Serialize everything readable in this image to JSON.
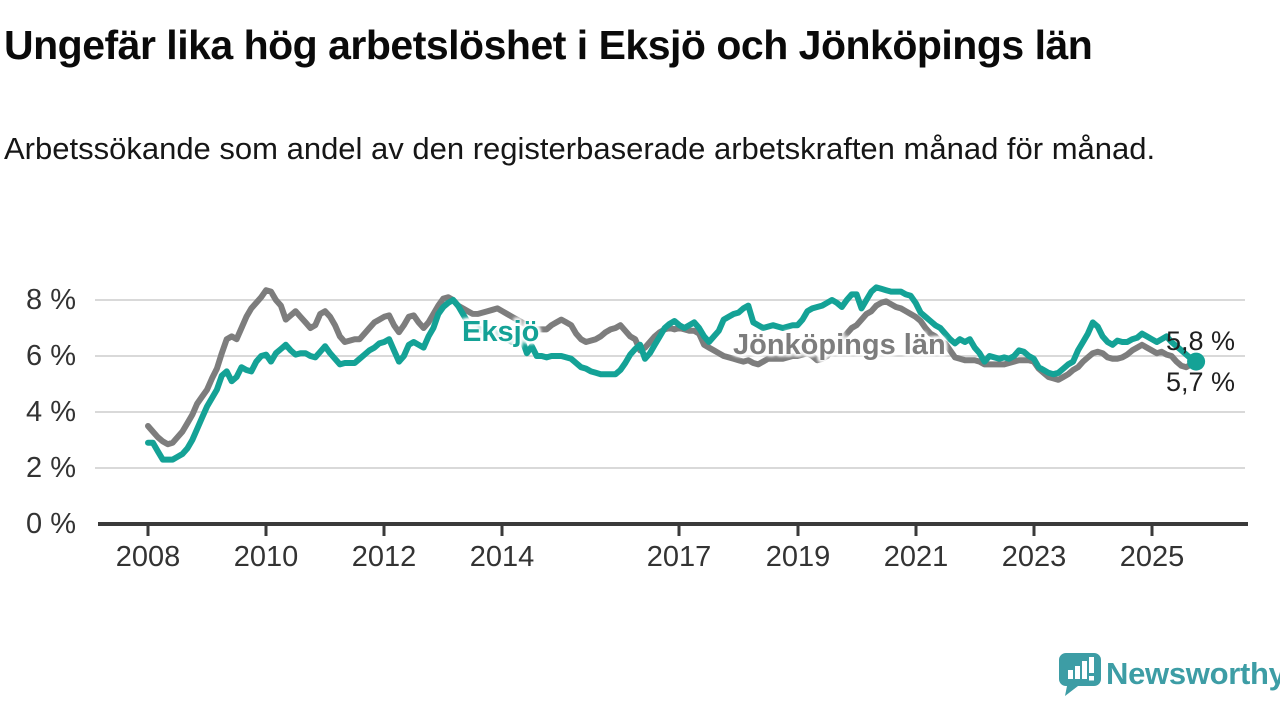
{
  "title": "Ungefär lika hög arbetslöshet i Eksjö och Jönköpings län",
  "subtitle": "Arbetssökande som andel av den registerbaserade arbetskraften månad för månad.",
  "colors": {
    "eksjo_line": "#14a296",
    "jonkoping_line": "#7d7d7d",
    "axis": "#3a3a3a",
    "grid": "#d9d9d9",
    "tick_text": "#333333",
    "logo_teal": "#3d9da5"
  },
  "logo": {
    "text": "Newsworthy"
  },
  "chart_data": {
    "type": "line",
    "title": "Ungefär lika hög arbetslöshet i Eksjö och Jönköpings län",
    "subtitle": "Arbetssökande som andel av den registerbaserade arbetskraften månad för månad.",
    "x_unit": "monthly, decimal years from 2008-01 to 2025-10",
    "x_start": 2008,
    "x_step": 0.0833,
    "xlim": [
      2007.6,
      2026.1
    ],
    "ylim": [
      0,
      8.8
    ],
    "grid": "horizontal",
    "legend_position": "inline-labels-on-lines",
    "yticks": [
      "8 %",
      "6 %",
      "4 %",
      "2 %",
      "0 %"
    ],
    "xticks": [
      2008,
      2010,
      2012,
      2014,
      2017,
      2019,
      2021,
      2023,
      2025
    ],
    "series": [
      {
        "name": "Eksjö",
        "color": "#14a296",
        "end_label": "5,8 %",
        "end_value": 5.8,
        "values": [
          2.9,
          2.9,
          2.6,
          2.3,
          2.3,
          2.3,
          2.4,
          2.5,
          2.7,
          3.0,
          3.4,
          3.8,
          4.2,
          4.5,
          4.8,
          5.3,
          5.45,
          5.1,
          5.25,
          5.6,
          5.5,
          5.45,
          5.8,
          6.0,
          6.05,
          5.8,
          6.1,
          6.25,
          6.4,
          6.2,
          6.05,
          6.1,
          6.1,
          6.0,
          5.95,
          6.15,
          6.35,
          6.1,
          5.9,
          5.7,
          5.75,
          5.75,
          5.75,
          5.9,
          6.05,
          6.2,
          6.3,
          6.45,
          6.5,
          6.6,
          6.2,
          5.8,
          6.0,
          6.4,
          6.5,
          6.4,
          6.3,
          6.7,
          7.0,
          7.5,
          7.75,
          7.9,
          8.0,
          7.8,
          7.5,
          7.2,
          7.1,
          7.0,
          6.9,
          6.8,
          6.9,
          6.8,
          6.7,
          6.6,
          6.5,
          6.6,
          6.6,
          6.1,
          6.35,
          6.0,
          6.0,
          5.95,
          6.0,
          6.0,
          6.0,
          5.95,
          5.9,
          5.75,
          5.6,
          5.55,
          5.45,
          5.4,
          5.35,
          5.35,
          5.35,
          5.35,
          5.5,
          5.75,
          6.05,
          6.25,
          6.4,
          5.9,
          6.1,
          6.4,
          6.7,
          7.0,
          7.15,
          7.25,
          7.1,
          7.0,
          7.1,
          7.2,
          7.0,
          6.7,
          6.5,
          6.7,
          6.9,
          7.3,
          7.4,
          7.5,
          7.55,
          7.7,
          7.8,
          7.2,
          7.1,
          7.0,
          7.05,
          7.1,
          7.05,
          7.0,
          7.05,
          7.1,
          7.1,
          7.3,
          7.6,
          7.7,
          7.75,
          7.8,
          7.9,
          8.0,
          7.9,
          7.75,
          8.0,
          8.2,
          8.2,
          7.7,
          8.0,
          8.3,
          8.45,
          8.4,
          8.35,
          8.3,
          8.3,
          8.3,
          8.2,
          8.15,
          7.9,
          7.55,
          7.4,
          7.25,
          7.1,
          7.0,
          6.8,
          6.6,
          6.45,
          6.6,
          6.5,
          6.6,
          6.3,
          6.1,
          5.8,
          6.0,
          5.95,
          5.9,
          5.95,
          5.9,
          6.0,
          6.2,
          6.15,
          6.0,
          5.9,
          5.6,
          5.5,
          5.4,
          5.35,
          5.4,
          5.55,
          5.7,
          5.8,
          6.2,
          6.5,
          6.8,
          7.2,
          7.05,
          6.7,
          6.5,
          6.4,
          6.55,
          6.5,
          6.5,
          6.6,
          6.65,
          6.8,
          6.7,
          6.6,
          6.5,
          6.6,
          6.7,
          6.5,
          6.35,
          6.2,
          6.05,
          5.9,
          5.8
        ]
      },
      {
        "name": "Jönköpings län",
        "color": "#7d7d7d",
        "end_label": "5,7 %",
        "end_value": 5.7,
        "values": [
          3.5,
          3.3,
          3.1,
          2.95,
          2.85,
          2.9,
          3.1,
          3.3,
          3.6,
          3.9,
          4.3,
          4.55,
          4.8,
          5.2,
          5.55,
          6.1,
          6.6,
          6.7,
          6.6,
          7.0,
          7.4,
          7.7,
          7.9,
          8.1,
          8.35,
          8.3,
          8.0,
          7.8,
          7.3,
          7.45,
          7.6,
          7.4,
          7.2,
          7.0,
          7.1,
          7.5,
          7.6,
          7.4,
          7.1,
          6.7,
          6.5,
          6.55,
          6.6,
          6.6,
          6.8,
          7.0,
          7.2,
          7.3,
          7.4,
          7.45,
          7.1,
          6.85,
          7.1,
          7.4,
          7.45,
          7.2,
          7.0,
          7.2,
          7.5,
          7.8,
          8.05,
          8.1,
          8.0,
          7.8,
          7.7,
          7.6,
          7.5,
          7.5,
          7.55,
          7.6,
          7.65,
          7.7,
          7.6,
          7.5,
          7.4,
          7.3,
          7.2,
          7.1,
          7.0,
          6.95,
          6.95,
          6.95,
          7.1,
          7.2,
          7.3,
          7.2,
          7.1,
          6.8,
          6.6,
          6.5,
          6.55,
          6.6,
          6.7,
          6.85,
          6.95,
          7.0,
          7.1,
          6.9,
          6.7,
          6.6,
          6.2,
          6.3,
          6.5,
          6.7,
          6.85,
          6.95,
          7.0,
          6.95,
          7.0,
          6.95,
          6.9,
          6.9,
          6.8,
          6.4,
          6.3,
          6.2,
          6.1,
          6.0,
          5.95,
          5.9,
          5.85,
          5.8,
          5.85,
          5.75,
          5.7,
          5.8,
          5.9,
          5.9,
          5.9,
          5.9,
          5.95,
          6.0,
          6.0,
          6.05,
          6.1,
          6.0,
          5.85,
          5.9,
          6.0,
          6.2,
          6.4,
          6.6,
          6.8,
          7.0,
          7.1,
          7.3,
          7.5,
          7.6,
          7.8,
          7.9,
          7.95,
          7.85,
          7.75,
          7.7,
          7.6,
          7.5,
          7.4,
          7.25,
          7.0,
          6.8,
          6.7,
          6.5,
          6.45,
          6.2,
          5.95,
          5.9,
          5.85,
          5.85,
          5.85,
          5.8,
          5.7,
          5.7,
          5.7,
          5.7,
          5.7,
          5.75,
          5.8,
          5.85,
          5.85,
          5.85,
          5.8,
          5.55,
          5.4,
          5.25,
          5.2,
          5.15,
          5.25,
          5.35,
          5.5,
          5.6,
          5.8,
          5.95,
          6.1,
          6.15,
          6.1,
          5.95,
          5.9,
          5.9,
          5.95,
          6.05,
          6.2,
          6.3,
          6.4,
          6.3,
          6.2,
          6.1,
          6.15,
          6.05,
          6.0,
          5.8,
          5.65,
          5.6,
          5.7,
          5.7
        ]
      }
    ]
  }
}
